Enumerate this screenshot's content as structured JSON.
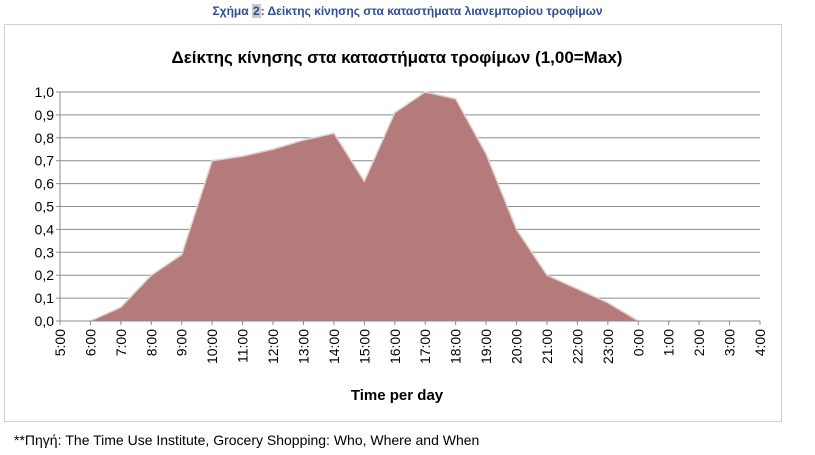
{
  "caption": {
    "prefix": "Σχήμα ",
    "number": "2",
    "text": ": Δείκτης κίνησης στα καταστήματα λιανεμπορίου τροφίμων"
  },
  "source_note": "**Πηγή: The Time Use Institute, Grocery Shopping: Who, Where and When",
  "colors": {
    "area_fill": "#b57a7a",
    "area_stroke": "#e6cfcf",
    "grid": "#8c8c8c",
    "caption": "#2f4f8f"
  },
  "chart_data": {
    "type": "area",
    "title": "Δείκτης κίνησης στα καταστήματα τροφίμων (1,00=Max)",
    "xlabel": "Time per day",
    "ylabel": "",
    "x": [
      "5:00",
      "6:00",
      "7:00",
      "8:00",
      "9:00",
      "10:00",
      "11:00",
      "12:00",
      "13:00",
      "14:00",
      "15:00",
      "16:00",
      "17:00",
      "18:00",
      "19:00",
      "20:00",
      "21:00",
      "22:00",
      "23:00",
      "0:00",
      "1:00",
      "2:00",
      "3:00",
      "4:00"
    ],
    "values": [
      null,
      0.0,
      0.06,
      0.2,
      0.29,
      0.7,
      0.72,
      0.75,
      0.79,
      0.82,
      0.61,
      0.91,
      1.0,
      0.97,
      0.73,
      0.4,
      0.2,
      0.14,
      0.08,
      0.0,
      null,
      null,
      null,
      null
    ],
    "yticks": [
      "0,0",
      "0,1",
      "0,2",
      "0,3",
      "0,4",
      "0,5",
      "0,6",
      "0,7",
      "0,8",
      "0,9",
      "1,0"
    ],
    "ylim": [
      0,
      1
    ],
    "grid": true,
    "legend": "none"
  }
}
